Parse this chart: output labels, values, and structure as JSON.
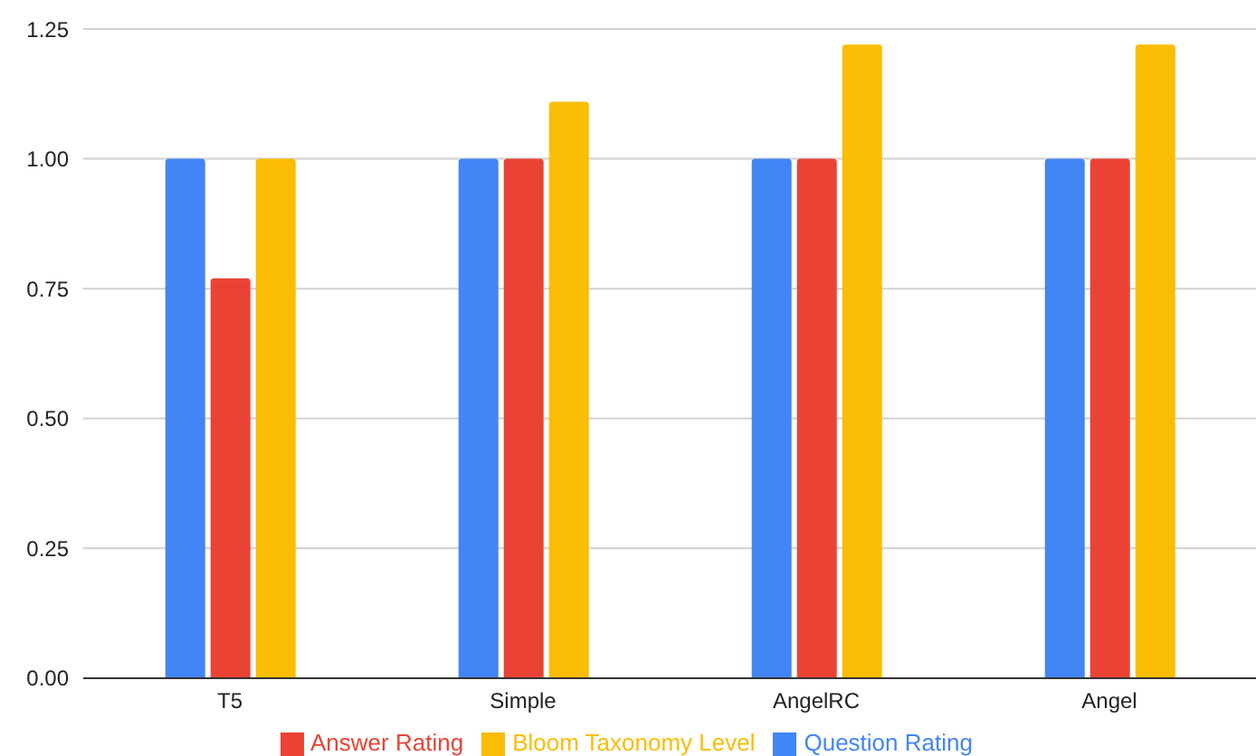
{
  "chart_data": {
    "type": "bar",
    "categories": [
      "T5",
      "Simple",
      "AngelRC",
      "Angel"
    ],
    "series": [
      {
        "name": "Question Rating",
        "color": "#4285f4",
        "values": [
          1,
          1,
          1,
          1
        ]
      },
      {
        "name": "Answer Rating",
        "color": "#ea4335",
        "values": [
          0.77,
          1,
          1,
          1
        ]
      },
      {
        "name": "Bloom Taxonomy Level",
        "color": "#fbbc04",
        "values": [
          1,
          1.11,
          1.22,
          1.22
        ]
      }
    ],
    "ylim": [
      0,
      1.25
    ],
    "yticks": [
      {
        "value": 0,
        "label": "0.00"
      },
      {
        "value": 0.25,
        "label": "0.25"
      },
      {
        "value": 0.5,
        "label": "0.50"
      },
      {
        "value": 0.75,
        "label": "0.75"
      },
      {
        "value": 1,
        "label": "1.00"
      },
      {
        "value": 1.25,
        "label": "1.25"
      }
    ],
    "grid": "y",
    "legend": "bottom"
  }
}
